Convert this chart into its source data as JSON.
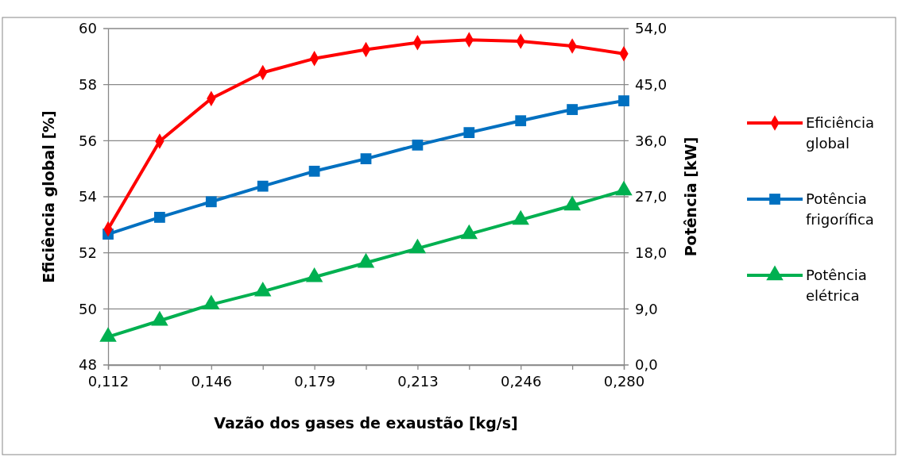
{
  "chart_data": {
    "type": "line",
    "xlabel": "Vazão dos gases de exaustão [kg/s]",
    "ylabel": "Eficiência global [%]",
    "y2label": "Potência [kW]",
    "x": [
      0.112,
      0.1288,
      0.1456,
      0.1624,
      0.1792,
      0.196,
      0.2128,
      0.2296,
      0.2464,
      0.2632,
      0.28
    ],
    "xlim": [
      0.112,
      0.28
    ],
    "xticks": [
      {
        "value": 0.112,
        "label": "0,112"
      },
      {
        "value": 0.1288,
        "label": null
      },
      {
        "value": 0.1456,
        "label": "0,146"
      },
      {
        "value": 0.1624,
        "label": null
      },
      {
        "value": 0.1792,
        "label": "0,179"
      },
      {
        "value": 0.196,
        "label": null
      },
      {
        "value": 0.2128,
        "label": "0,213"
      },
      {
        "value": 0.2296,
        "label": null
      },
      {
        "value": 0.2464,
        "label": "0,246"
      },
      {
        "value": 0.2632,
        "label": null
      },
      {
        "value": 0.28,
        "label": "0,280"
      }
    ],
    "ylim": [
      48,
      60
    ],
    "yticks": [
      48,
      50,
      52,
      54,
      56,
      58,
      60
    ],
    "y2lim": [
      0,
      54
    ],
    "y2ticks": [
      {
        "value": 0,
        "label": "0,0"
      },
      {
        "value": 9,
        "label": "9,0"
      },
      {
        "value": 18,
        "label": "18,0"
      },
      {
        "value": 27,
        "label": "27,0"
      },
      {
        "value": 36,
        "label": "36,0"
      },
      {
        "value": 45,
        "label": "45,0"
      },
      {
        "value": 54,
        "label": "54,0"
      }
    ],
    "grid": "y",
    "legend": "right",
    "series": [
      {
        "name": "Eficiência global",
        "color": "#ff0000",
        "marker": "diamond",
        "values": [
          52.85,
          55.98,
          57.5,
          58.43,
          58.93,
          59.25,
          59.5,
          59.6,
          59.55,
          59.38,
          59.1
        ]
      },
      {
        "name": "Potência frigorífica",
        "color": "#0070c0",
        "marker": "square",
        "axis": "y2",
        "values": [
          21.0,
          23.7,
          26.2,
          28.7,
          31.1,
          33.1,
          35.3,
          37.3,
          39.2,
          41.0,
          42.4
        ]
      },
      {
        "name": "Potência elétrica",
        "color": "#00b050",
        "marker": "triangle",
        "axis": "y2",
        "values": [
          4.5,
          7.1,
          9.7,
          11.8,
          14.1,
          16.4,
          18.7,
          21.0,
          23.3,
          25.6,
          28.0
        ]
      }
    ]
  }
}
